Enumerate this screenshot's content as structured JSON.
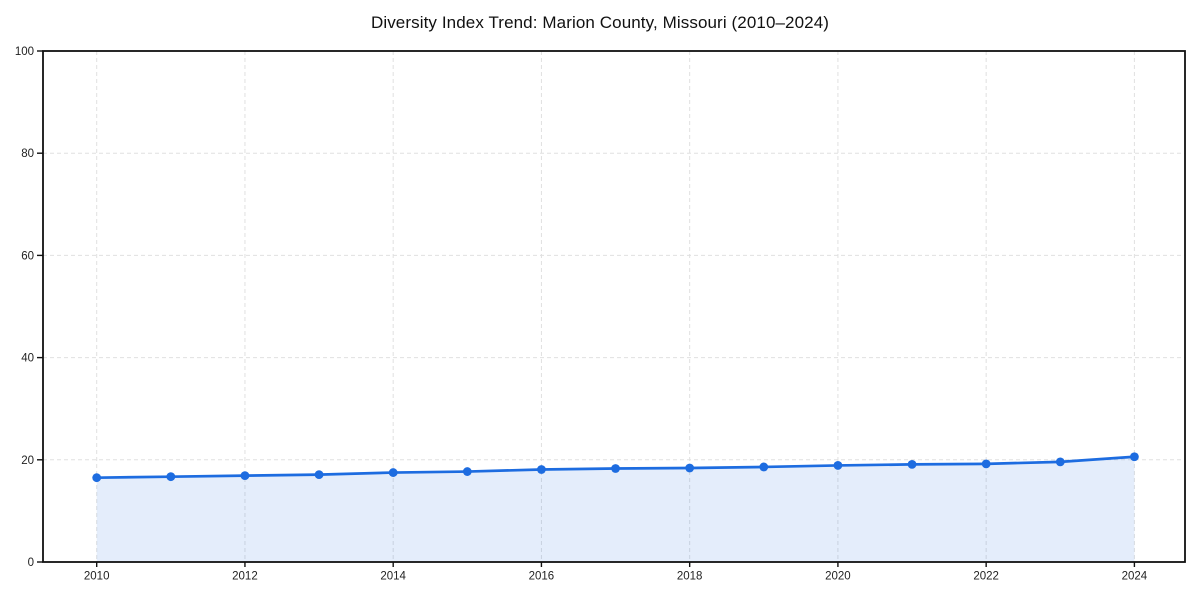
{
  "chart_data": {
    "type": "area",
    "title": "Diversity Index Trend: Marion County, Missouri (2010–2024)",
    "x": [
      2010,
      2011,
      2012,
      2013,
      2014,
      2015,
      2016,
      2017,
      2018,
      2019,
      2020,
      2021,
      2022,
      2023,
      2024
    ],
    "values": [
      16.5,
      16.7,
      16.9,
      17.1,
      17.5,
      17.7,
      18.1,
      18.3,
      18.4,
      18.6,
      18.9,
      19.1,
      19.2,
      19.6,
      20.6
    ],
    "xlabel": "",
    "ylabel": "",
    "ylim": [
      0,
      100
    ],
    "yticks": [
      0,
      20,
      40,
      60,
      80,
      100
    ],
    "xticks": [
      2010,
      2012,
      2014,
      2016,
      2018,
      2020,
      2022,
      2024
    ],
    "grid": true,
    "grid_style": "dashed",
    "legend_position": "none",
    "line_color": "#1d6ce0",
    "marker_color": "#1d6ce0",
    "fill_color": "#1d6ce0",
    "fill_opacity": 0.12,
    "grid_color": "#e0e0e0",
    "spine_color": "#111111",
    "tick_label_color": "#222222",
    "title_color": "#111111"
  }
}
